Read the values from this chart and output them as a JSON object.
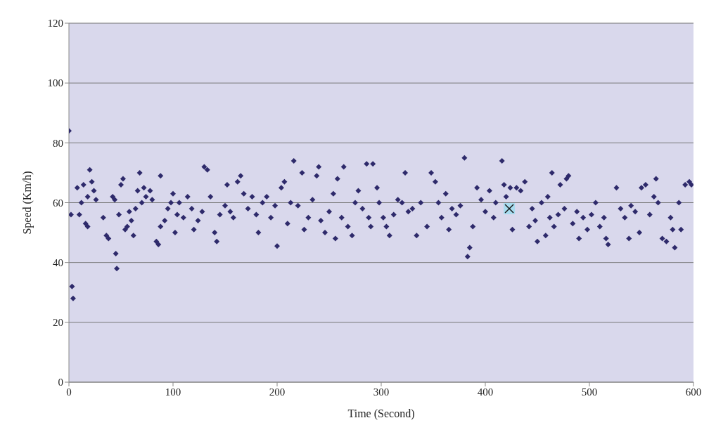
{
  "chart_data": {
    "type": "scatter",
    "xlabel": "Time (Second)",
    "ylabel": "Speed (Km/h)",
    "xlim": [
      0,
      600
    ],
    "xticks": [
      0,
      100,
      200,
      300,
      400,
      500,
      600
    ],
    "ylim": [
      0,
      120
    ],
    "yticks": [
      0,
      20,
      40,
      60,
      80,
      100,
      120
    ],
    "grid": "y",
    "series": [
      {
        "color": "#2e2a6b",
        "marker": "diamond",
        "x": [
          0,
          2,
          3,
          4,
          45,
          46,
          383,
          385,
          200,
          8,
          10,
          12,
          14,
          16,
          18,
          20,
          22,
          24,
          26,
          18,
          33,
          36,
          38,
          42,
          44,
          48,
          50,
          52,
          54,
          56,
          58,
          60,
          62,
          64,
          66,
          68,
          70,
          72,
          74,
          78,
          80,
          84,
          86,
          88,
          88,
          92,
          95,
          98,
          100,
          102,
          104,
          106,
          110,
          114,
          118,
          120,
          124,
          128,
          130,
          133,
          136,
          140,
          142,
          145,
          150,
          152,
          155,
          158,
          162,
          165,
          168,
          172,
          176,
          180,
          182,
          186,
          190,
          194,
          198,
          204,
          207,
          210,
          213,
          216,
          220,
          224,
          226,
          230,
          234,
          238,
          240,
          242,
          246,
          250,
          254,
          256,
          258,
          262,
          264,
          268,
          272,
          275,
          278,
          282,
          286,
          288,
          290,
          292,
          296,
          298,
          302,
          305,
          308,
          312,
          316,
          320,
          323,
          326,
          330,
          334,
          338,
          344,
          348,
          352,
          355,
          358,
          362,
          365,
          368,
          372,
          376,
          380,
          388,
          392,
          396,
          400,
          404,
          408,
          410,
          416,
          418,
          420,
          424,
          426,
          430,
          434,
          438,
          442,
          445,
          448,
          450,
          454,
          458,
          460,
          462,
          464,
          466,
          470,
          472,
          476,
          478,
          480,
          484,
          488,
          490,
          494,
          498,
          502,
          506,
          510,
          514,
          516,
          518,
          526,
          530,
          534,
          538,
          540,
          544,
          548,
          550,
          554,
          558,
          562,
          564,
          566,
          570,
          574,
          578,
          580,
          582,
          586,
          588,
          592,
          596,
          598
        ],
        "values": [
          84,
          56,
          32,
          28,
          43,
          38,
          42,
          45,
          45.5,
          65,
          56,
          60,
          66,
          53,
          62,
          71,
          67,
          64,
          61,
          52,
          55,
          49,
          48,
          62,
          61,
          56,
          66,
          68,
          51,
          52,
          57,
          54,
          49,
          58,
          64,
          70,
          60,
          65,
          62,
          64,
          61,
          47,
          46,
          52,
          69,
          54,
          58,
          60,
          63,
          50,
          56,
          60,
          55,
          62,
          58,
          51,
          54,
          57,
          72,
          71,
          62,
          50,
          47,
          56,
          59,
          66,
          57,
          55,
          67,
          69,
          63,
          58,
          62,
          56,
          50,
          60,
          62,
          55,
          59,
          65,
          67,
          53,
          60,
          74,
          59,
          70,
          51,
          55,
          61,
          69,
          72,
          54,
          50,
          57,
          63,
          48,
          68,
          55,
          72,
          52,
          49,
          60,
          64,
          58,
          73,
          55,
          52,
          73,
          65,
          60,
          55,
          52,
          49,
          56,
          61,
          60,
          70,
          57,
          58,
          49,
          60,
          52,
          70,
          67,
          60,
          55,
          63,
          51,
          58,
          56,
          59,
          75,
          52,
          65,
          61,
          57,
          64,
          55,
          60,
          74,
          66,
          62,
          65,
          51,
          65,
          64,
          67,
          52,
          58,
          54,
          47,
          60,
          49,
          62,
          55,
          70,
          52,
          56,
          66,
          58,
          68,
          69,
          53,
          57,
          48,
          55,
          51,
          56,
          60,
          52,
          55,
          48,
          46,
          65,
          58,
          55,
          48,
          59,
          57,
          50,
          65,
          66,
          56,
          62,
          68,
          60,
          48,
          47,
          55,
          51,
          45,
          60,
          51,
          66,
          67,
          66
        ]
      },
      {
        "color": "#1a1a1a",
        "marker": "cross",
        "x": [
          423
        ],
        "values": [
          58
        ]
      }
    ]
  }
}
